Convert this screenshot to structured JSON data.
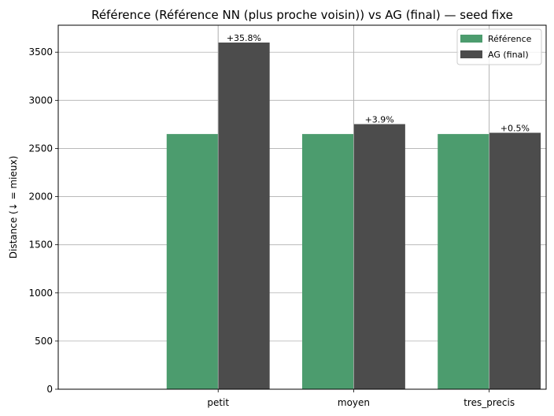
{
  "chart_data": {
    "type": "bar",
    "title": "Référence (Référence NN (plus proche voisin)) vs AG (final) — seed fixe",
    "xlabel": "",
    "ylabel": "Distance (↓ = mieux)",
    "categories": [
      "petit",
      "moyen",
      "tres_precis"
    ],
    "series": [
      {
        "name": "Référence",
        "color": "#4c9c6e",
        "values": [
          2650,
          2650,
          2650
        ]
      },
      {
        "name": "AG (final)",
        "color": "#4c4c4c",
        "values": [
          3600,
          2753,
          2663
        ]
      }
    ],
    "bar_labels": [
      "+35.8%",
      "+3.9%",
      "+0.5%"
    ],
    "ylim": [
      0,
      3780
    ],
    "yticks": [
      0,
      500,
      1000,
      1500,
      2000,
      2500,
      3000,
      3500
    ],
    "grid": true,
    "legend_position": "top-right"
  }
}
